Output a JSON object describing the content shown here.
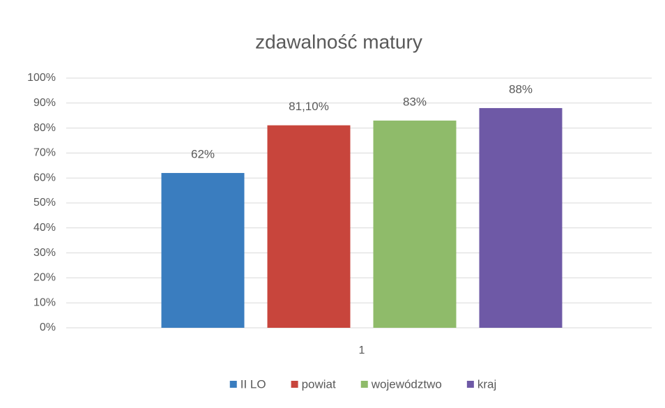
{
  "chart_data": {
    "type": "bar",
    "title": "zdawalność matury",
    "categories": [
      "1"
    ],
    "series": [
      {
        "name": "II LO",
        "color": "#3a7dbf",
        "values": [
          62
        ],
        "value_labels": [
          "62%"
        ]
      },
      {
        "name": "powiat",
        "color": "#c8453c",
        "values": [
          81.1
        ],
        "value_labels": [
          "81,10%"
        ]
      },
      {
        "name": "województwo",
        "color": "#8fbb6a",
        "values": [
          83
        ],
        "value_labels": [
          "83%"
        ]
      },
      {
        "name": "kraj",
        "color": "#6e59a6",
        "values": [
          88
        ],
        "value_labels": [
          "88%"
        ]
      }
    ],
    "ylim": [
      0,
      100
    ],
    "yticks": [
      {
        "value": 0,
        "label": "0%"
      },
      {
        "value": 10,
        "label": "10%"
      },
      {
        "value": 20,
        "label": "20%"
      },
      {
        "value": 30,
        "label": "30%"
      },
      {
        "value": 40,
        "label": "40%"
      },
      {
        "value": 50,
        "label": "50%"
      },
      {
        "value": 60,
        "label": "60%"
      },
      {
        "value": 70,
        "label": "70%"
      },
      {
        "value": 80,
        "label": "80%"
      },
      {
        "value": 90,
        "label": "90%"
      },
      {
        "value": 100,
        "label": "100%"
      }
    ],
    "grid": true,
    "legend": "bottom"
  }
}
